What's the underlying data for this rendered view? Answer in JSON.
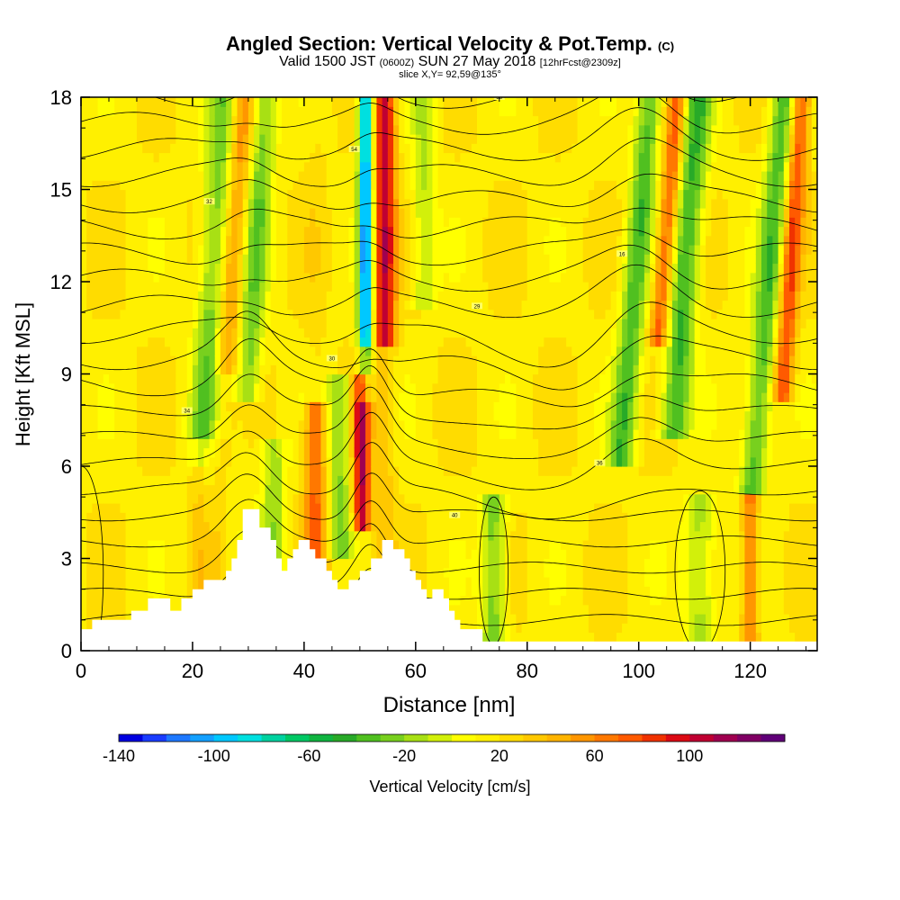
{
  "header": {
    "title_main": "Angled Section: Vertical Velocity & Pot.Temp.",
    "title_mark": "(C)",
    "valid_a": "Valid 1500 JST",
    "valid_b": "(0600Z)",
    "valid_c": "SUN 27 May 2018",
    "valid_d": "[12hrFcst@2309z]",
    "slice": "slice X,Y= 92,59@135°"
  },
  "chart_data": {
    "type": "heatmap",
    "xlabel": "Distance [nm]",
    "ylabel": "Height [Kft MSL]",
    "xlim": [
      0,
      132
    ],
    "ylim": [
      0,
      18
    ],
    "x_ticks": [
      0,
      20,
      40,
      60,
      80,
      100,
      120
    ],
    "y_ticks": [
      0,
      3,
      6,
      9,
      12,
      15,
      18
    ],
    "colorbar": {
      "label": "Vertical Velocity [cm/s]",
      "min": -140,
      "max": 140,
      "step": 10,
      "tick_labels": [
        "-140",
        "-100",
        "-60",
        "-20",
        "20",
        "60",
        "100"
      ],
      "tick_values": [
        -140,
        -100,
        -60,
        -20,
        20,
        60,
        100
      ],
      "colors": [
        "#0000e0",
        "#1a3cff",
        "#1e78ff",
        "#14a0ff",
        "#00c8ff",
        "#00e0e0",
        "#00d2a0",
        "#00c864",
        "#10b440",
        "#28aa28",
        "#50c020",
        "#78d01e",
        "#a8e014",
        "#d2f00a",
        "#ffff00",
        "#fff000",
        "#ffdc00",
        "#ffc800",
        "#ffb400",
        "#ff9600",
        "#ff7800",
        "#ff5a00",
        "#f03200",
        "#dc0a14",
        "#c00032",
        "#a00050",
        "#800064",
        "#600078"
      ]
    },
    "terrain": [
      [
        0,
        0.7
      ],
      [
        2,
        0.7
      ],
      [
        2,
        1
      ],
      [
        9,
        1
      ],
      [
        9,
        1.3
      ],
      [
        12,
        1.3
      ],
      [
        12,
        1.7
      ],
      [
        16,
        1.7
      ],
      [
        16,
        1.3
      ],
      [
        18,
        1.3
      ],
      [
        18,
        1.7
      ],
      [
        20,
        1.7
      ],
      [
        20,
        2
      ],
      [
        22,
        2
      ],
      [
        22,
        2.3
      ],
      [
        26,
        2.3
      ],
      [
        26,
        2.6
      ],
      [
        27,
        2.6
      ],
      [
        27,
        3
      ],
      [
        28,
        3
      ],
      [
        28,
        3.6
      ],
      [
        29,
        3.6
      ],
      [
        29,
        4.6
      ],
      [
        32,
        4.6
      ],
      [
        32,
        4
      ],
      [
        34,
        4
      ],
      [
        34,
        3.6
      ],
      [
        35,
        3.6
      ],
      [
        35,
        3
      ],
      [
        36,
        3
      ],
      [
        36,
        2.6
      ],
      [
        37,
        2.6
      ],
      [
        37,
        3
      ],
      [
        38,
        3
      ],
      [
        38,
        3.3
      ],
      [
        39,
        3.3
      ],
      [
        39,
        3.6
      ],
      [
        41,
        3.6
      ],
      [
        41,
        3.3
      ],
      [
        42,
        3.3
      ],
      [
        42,
        3
      ],
      [
        44,
        3
      ],
      [
        44,
        2.6
      ],
      [
        45,
        2.6
      ],
      [
        45,
        2.3
      ],
      [
        46,
        2.3
      ],
      [
        46,
        2
      ],
      [
        48,
        2
      ],
      [
        48,
        2.3
      ],
      [
        50,
        2.3
      ],
      [
        50,
        2.6
      ],
      [
        52,
        2.6
      ],
      [
        52,
        3
      ],
      [
        54,
        3
      ],
      [
        54,
        3.6
      ],
      [
        56,
        3.6
      ],
      [
        56,
        3.3
      ],
      [
        58,
        3.3
      ],
      [
        58,
        3
      ],
      [
        59,
        3
      ],
      [
        59,
        2.6
      ],
      [
        60,
        2.6
      ],
      [
        60,
        2.3
      ],
      [
        61,
        2.3
      ],
      [
        61,
        2
      ],
      [
        62,
        2
      ],
      [
        62,
        1.7
      ],
      [
        63,
        1.7
      ],
      [
        63,
        2
      ],
      [
        65,
        2
      ],
      [
        65,
        1.7
      ],
      [
        66,
        1.7
      ],
      [
        66,
        1.3
      ],
      [
        67,
        1.3
      ],
      [
        67,
        1
      ],
      [
        68,
        1
      ],
      [
        68,
        0.7
      ],
      [
        72,
        0.7
      ],
      [
        72,
        0.3
      ],
      [
        132,
        0.3
      ]
    ],
    "theta_contour_labels": [
      "48",
      "38",
      "40",
      "36",
      "34",
      "30",
      "29",
      "16",
      "32",
      "54",
      "38",
      "16",
      "39"
    ]
  }
}
